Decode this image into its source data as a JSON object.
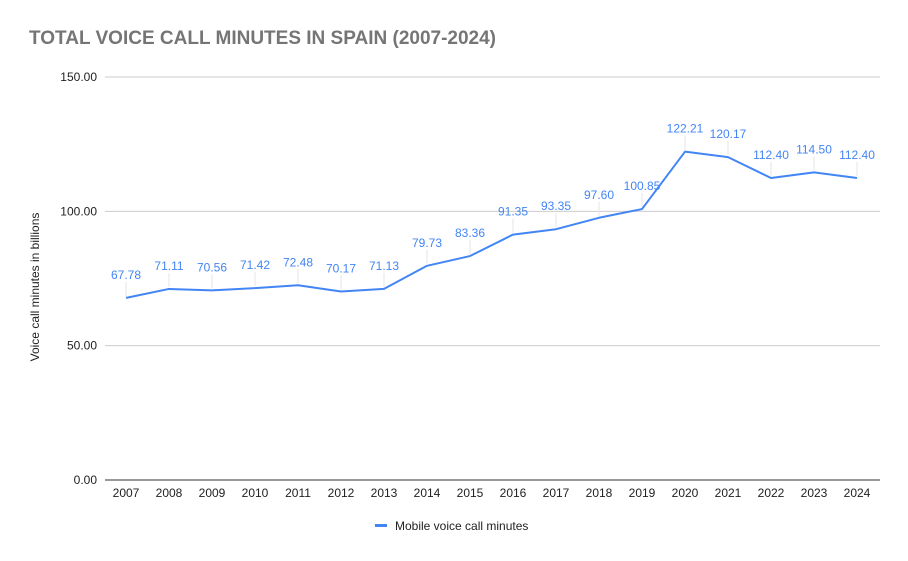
{
  "chart_data": {
    "type": "line",
    "title": "TOTAL VOICE CALL MINUTES IN SPAIN (2007-2024)",
    "xlabel": "",
    "ylabel": "Voice call minutes in billions",
    "x": [
      "2007",
      "2008",
      "2009",
      "2010",
      "2011",
      "2012",
      "2013",
      "2014",
      "2015",
      "2016",
      "2017",
      "2018",
      "2019",
      "2020",
      "2021",
      "2022",
      "2023",
      "2024"
    ],
    "series": [
      {
        "name": "Mobile voice call minutes",
        "color": "#4285f4",
        "values": [
          67.78,
          71.11,
          70.56,
          71.42,
          72.48,
          70.17,
          71.13,
          79.73,
          83.36,
          91.35,
          93.35,
          97.6,
          100.85,
          122.21,
          120.17,
          112.4,
          114.5,
          112.4
        ],
        "labels": [
          "67.78",
          "71.11",
          "70.56",
          "71.42",
          "72.48",
          "70.17",
          "71.13",
          "79.73",
          "83.36",
          "91.35",
          "93.35",
          "97.60",
          "100.85",
          "122.21",
          "120.17",
          "112.40",
          "114.50",
          "112.40"
        ]
      }
    ],
    "ylim": [
      0,
      150
    ],
    "yticks": [
      "0.00",
      "50.00",
      "100.00",
      "150.00"
    ],
    "grid": true,
    "legend": "bottom"
  }
}
